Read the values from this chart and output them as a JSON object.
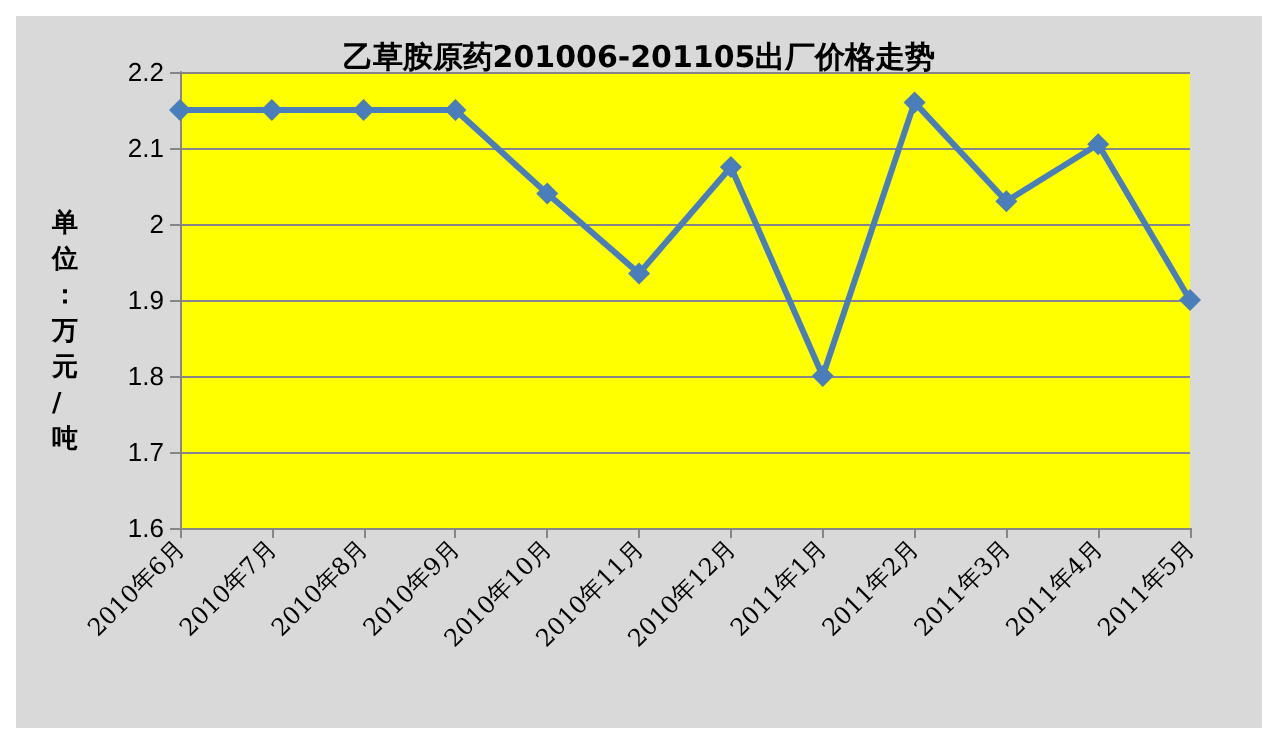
{
  "chart_data": {
    "type": "line",
    "title": "乙草胺原药201006-201105出厂价格走势",
    "ylabel": "单位：万元/吨",
    "categories": [
      "2010年6月",
      "2010年7月",
      "2010年8月",
      "2010年9月",
      "2010年10月",
      "2010年11月",
      "2010年12月",
      "2011年1月",
      "2011年2月",
      "2011年3月",
      "2011年4月",
      "2011年5月"
    ],
    "series": [
      {
        "color": "#4a7ebb",
        "values": [
          2.15,
          2.15,
          2.15,
          2.15,
          2.04,
          1.935,
          2.075,
          1.8,
          2.16,
          2.03,
          2.105,
          1.9
        ]
      }
    ],
    "ylim": [
      1.6,
      2.2
    ],
    "yticks": [
      1.6,
      1.7,
      1.8,
      1.9,
      2,
      2.1,
      2.2
    ],
    "grid": "y",
    "marker": "diamond",
    "line_style": "solid"
  }
}
